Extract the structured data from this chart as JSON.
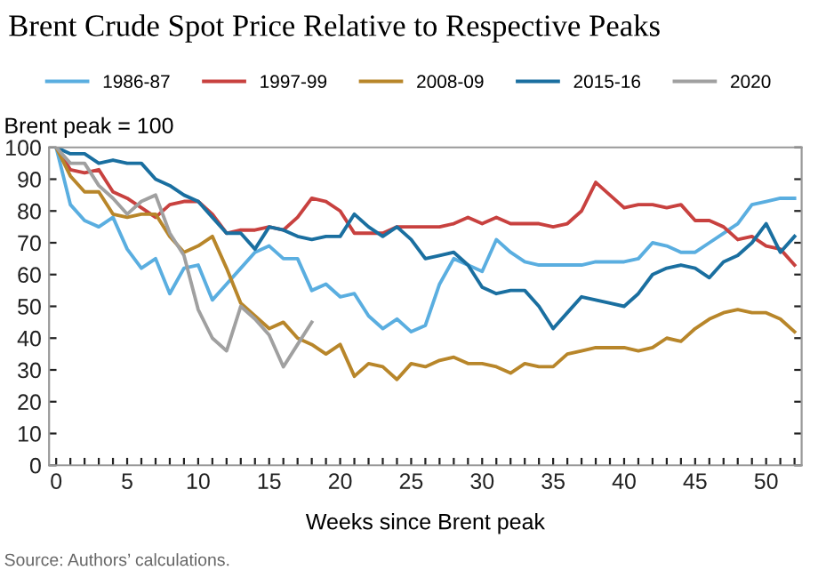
{
  "chart_data": {
    "type": "line",
    "title": "Brent Crude Spot Price Relative to Respective Peaks",
    "ylabel": "Brent peak = 100",
    "xlabel": "Weeks since Brent peak",
    "annotations": [
      "Source: Authors’ calculations."
    ],
    "x": [
      0,
      1,
      2,
      3,
      4,
      5,
      6,
      7,
      8,
      9,
      10,
      11,
      12,
      13,
      14,
      15,
      16,
      17,
      18,
      19,
      20,
      21,
      22,
      23,
      24,
      25,
      26,
      27,
      28,
      29,
      30,
      31,
      32,
      33,
      34,
      35,
      36,
      37,
      38,
      39,
      40,
      41,
      42,
      43,
      44,
      45,
      46,
      47,
      48,
      49,
      50,
      51,
      52
    ],
    "series": [
      {
        "name": "1986-87",
        "color": "#5aaee0",
        "values": [
          100,
          82,
          77,
          75,
          78,
          68,
          62,
          65,
          54,
          62,
          63,
          52,
          57,
          62,
          67,
          69,
          65,
          65,
          55,
          57,
          53,
          54,
          47,
          43,
          46,
          42,
          44,
          57,
          65,
          63,
          61,
          71,
          67,
          64,
          63,
          63,
          63,
          63,
          64,
          64,
          64,
          65,
          70,
          69,
          67,
          67,
          70,
          73,
          76,
          82,
          83,
          84,
          84
        ]
      },
      {
        "name": "1997-99",
        "color": "#c8413f",
        "values": [
          100,
          93,
          92,
          93,
          86,
          84,
          81,
          78,
          82,
          83,
          83,
          79,
          73,
          74,
          74,
          75,
          74,
          78,
          84,
          83,
          80,
          73,
          73,
          73,
          75,
          75,
          75,
          75,
          76,
          78,
          76,
          78,
          76,
          76,
          76,
          75,
          76,
          80,
          89,
          85,
          81,
          82,
          82,
          81,
          82,
          77,
          77,
          75,
          71,
          72,
          69,
          68,
          63
        ]
      },
      {
        "name": "2008-09",
        "color": "#b8862a",
        "values": [
          100,
          91,
          86,
          86,
          79,
          78,
          79,
          79,
          72,
          67,
          69,
          72,
          62,
          51,
          47,
          43,
          45,
          40,
          38,
          35,
          38,
          28,
          32,
          31,
          27,
          32,
          31,
          33,
          34,
          32,
          32,
          31,
          29,
          32,
          31,
          31,
          35,
          36,
          37,
          37,
          37,
          36,
          37,
          40,
          39,
          43,
          46,
          48,
          49,
          48,
          48,
          46,
          42
        ]
      },
      {
        "name": "2015-16",
        "color": "#1a6fa0",
        "values": [
          100,
          98,
          98,
          95,
          96,
          95,
          95,
          90,
          88,
          85,
          83,
          78,
          73,
          73,
          68,
          75,
          74,
          72,
          71,
          72,
          72,
          79,
          75,
          72,
          75,
          71,
          65,
          66,
          67,
          63,
          56,
          54,
          55,
          55,
          50,
          43,
          48,
          53,
          52,
          51,
          50,
          54,
          60,
          62,
          63,
          62,
          59,
          64,
          66,
          70,
          76,
          67,
          72
        ]
      },
      {
        "name": "2020",
        "color": "#a0a0a0",
        "values": [
          100,
          95,
          95,
          88,
          84,
          79,
          83,
          85,
          73,
          66,
          49,
          40,
          36,
          50,
          46,
          41,
          31,
          38,
          45,
          null,
          null,
          null,
          null,
          null,
          null,
          null,
          null,
          null,
          null,
          null,
          null,
          null,
          null,
          null,
          null,
          null,
          null,
          null,
          null,
          null,
          null,
          null,
          null,
          null,
          null,
          null,
          null,
          null,
          null,
          null,
          null,
          null,
          null
        ]
      }
    ],
    "xlim": [
      -0.5,
      52.5
    ],
    "ylim": [
      0,
      100
    ],
    "xticks": [
      0,
      {
        "value": 1,
        "label": null
      },
      {
        "value": 2,
        "label": null
      },
      {
        "value": 3,
        "label": null
      },
      {
        "value": 4,
        "label": null
      },
      5,
      {
        "value": 6,
        "label": null
      },
      {
        "value": 7,
        "label": null
      },
      {
        "value": 8,
        "label": null
      },
      {
        "value": 9,
        "label": null
      },
      10,
      {
        "value": 11,
        "label": null
      },
      {
        "value": 12,
        "label": null
      },
      {
        "value": 13,
        "label": null
      },
      {
        "value": 14,
        "label": null
      },
      15,
      {
        "value": 16,
        "label": null
      },
      {
        "value": 17,
        "label": null
      },
      {
        "value": 18,
        "label": null
      },
      {
        "value": 19,
        "label": null
      },
      20,
      {
        "value": 21,
        "label": null
      },
      {
        "value": 22,
        "label": null
      },
      {
        "value": 23,
        "label": null
      },
      {
        "value": 24,
        "label": null
      },
      25,
      {
        "value": 26,
        "label": null
      },
      {
        "value": 27,
        "label": null
      },
      {
        "value": 28,
        "label": null
      },
      {
        "value": 29,
        "label": null
      },
      30,
      {
        "value": 31,
        "label": null
      },
      {
        "value": 32,
        "label": null
      },
      {
        "value": 33,
        "label": null
      },
      {
        "value": 34,
        "label": null
      },
      35,
      {
        "value": 36,
        "label": null
      },
      {
        "value": 37,
        "label": null
      },
      {
        "value": 38,
        "label": null
      },
      {
        "value": 39,
        "label": null
      },
      40,
      {
        "value": 41,
        "label": null
      },
      {
        "value": 42,
        "label": null
      },
      {
        "value": 43,
        "label": null
      },
      {
        "value": 44,
        "label": null
      },
      45,
      {
        "value": 46,
        "label": null
      },
      {
        "value": 47,
        "label": null
      },
      {
        "value": 48,
        "label": null
      },
      {
        "value": 49,
        "label": null
      },
      50,
      {
        "value": 51,
        "label": null
      },
      {
        "value": 52,
        "label": null
      }
    ],
    "yticks": [
      0,
      10,
      20,
      30,
      40,
      50,
      60,
      70,
      80,
      90,
      100
    ],
    "legend": "top",
    "grid": false,
    "marker": "none",
    "line_style": "solid"
  }
}
